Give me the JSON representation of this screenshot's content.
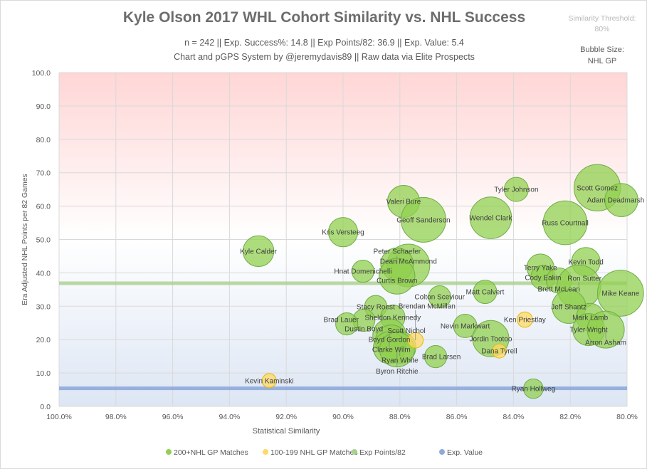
{
  "header": {
    "title": "Kyle Olson 2017 WHL Cohort Similarity vs. NHL Success",
    "subtitle1": "n = 242 || Exp. Success%: 14.8 || Exp Points/82: 36.9 || Exp. Value: 5.4",
    "subtitle2": "Chart and pGPS System by @jeremydavis89 || Raw data via Elite Prospects",
    "threshold_label": "Similarity Threshold:",
    "threshold_value": "80%",
    "bubble_label": "Bubble Size:",
    "bubble_value": "NHL GP"
  },
  "chart_data": {
    "type": "scatter",
    "subtype": "bubble",
    "xlabel": "Statistical Similarity",
    "ylabel": "Era Adjusted NHL Points per 82 Games",
    "xlim": [
      100,
      80
    ],
    "ylim": [
      0,
      100
    ],
    "x_reversed": true,
    "xticks": [
      "100.0%",
      "98.0%",
      "96.0%",
      "94.0%",
      "92.0%",
      "90.0%",
      "88.0%",
      "86.0%",
      "84.0%",
      "82.0%",
      "80.0%"
    ],
    "yticks": [
      "0.0",
      "10.0",
      "20.0",
      "30.0",
      "40.0",
      "50.0",
      "60.0",
      "70.0",
      "80.0",
      "90.0",
      "100.0"
    ],
    "grid": true,
    "legend_position": "bottom",
    "colors": {
      "green": "#92d050",
      "yellow": "#ffd966",
      "exp_points": "#a9d18e",
      "exp_value": "#8faadc",
      "bg_top": "#ffd6d6",
      "bg_bottom": "#dde6f4"
    },
    "legend": [
      "200+NHL GP Matches",
      "100-199 NHL GP Matches",
      "Exp Points/82",
      "Exp. Value"
    ],
    "reference_lines": {
      "exp_points_82": 36.9,
      "exp_value": 5.4
    },
    "series": [
      {
        "name": "200+NHL GP Matches",
        "color": "green",
        "points": [
          {
            "label": "Kyle Calder",
            "x": 92.98,
            "y": 46.5,
            "gp": 520
          },
          {
            "label": "Kris Versteeg",
            "x": 90.0,
            "y": 52.2,
            "gp": 470
          },
          {
            "label": "Hnat Domenichelli",
            "x": 89.3,
            "y": 40.5,
            "gp": 270
          },
          {
            "label": "Dean McAmmond",
            "x": 87.7,
            "y": 42.2,
            "gp": 1000
          },
          {
            "label": "Peter Schaefer",
            "x": 88.1,
            "y": 42.6,
            "gp": 580
          },
          {
            "label": "Curtis Brown",
            "x": 88.1,
            "y": 39.0,
            "gp": 700
          },
          {
            "label": "Valeri Bure",
            "x": 87.87,
            "y": 61.4,
            "gp": 560
          },
          {
            "label": "Geoff Sanderson",
            "x": 87.17,
            "y": 55.9,
            "gp": 1100
          },
          {
            "label": "Stacy Roest",
            "x": 88.85,
            "y": 29.9,
            "gp": 270
          },
          {
            "label": "Sheldon Kennedy",
            "x": 88.25,
            "y": 26.7,
            "gp": 330
          },
          {
            "label": "Dustin Boyd",
            "x": 89.27,
            "y": 25.8,
            "gp": 270
          },
          {
            "label": "Brad Lauer",
            "x": 89.87,
            "y": 24.7,
            "gp": 270
          },
          {
            "label": "Boyd Gordon",
            "x": 88.37,
            "y": 21.3,
            "gp": 600
          },
          {
            "label": "Clarke Wilm",
            "x": 88.3,
            "y": 19.6,
            "gp": 560
          },
          {
            "label": "Ryan White",
            "x": 88.0,
            "y": 17.7,
            "gp": 560
          },
          {
            "label": "Scott Nichol",
            "x": 88.37,
            "y": 17.6,
            "gp": 560
          },
          {
            "label": "Byron Ritchie",
            "x": 88.1,
            "y": 17.0,
            "gp": 660
          },
          {
            "label": "Brad Larsen",
            "x": 86.74,
            "y": 14.9,
            "gp": 270
          },
          {
            "label": "Colton Sceviour",
            "x": 86.6,
            "y": 32.8,
            "gp": 270
          },
          {
            "label": "Matt Calvert",
            "x": 85.0,
            "y": 34.3,
            "gp": 300
          },
          {
            "label": "Nevin Markwart",
            "x": 85.7,
            "y": 24.1,
            "gp": 300
          },
          {
            "label": "Jordin Tootoo",
            "x": 84.8,
            "y": 20.3,
            "gp": 720
          },
          {
            "label": "Ryan Hollweg",
            "x": 83.3,
            "y": 5.3,
            "gp": 210
          },
          {
            "label": "Tyler Johnson",
            "x": 83.9,
            "y": 65.0,
            "gp": 320
          },
          {
            "label": "Wendel Clark",
            "x": 84.8,
            "y": 56.5,
            "gp": 950
          },
          {
            "label": "Russ Courtnall",
            "x": 82.18,
            "y": 55.0,
            "gp": 1050
          },
          {
            "label": "Scott Gomez",
            "x": 81.05,
            "y": 65.5,
            "gp": 1180
          },
          {
            "label": "Adam Deadmarsh",
            "x": 80.2,
            "y": 61.8,
            "gp": 600
          },
          {
            "label": "Kevin Todd",
            "x": 81.45,
            "y": 43.3,
            "gp": 450
          },
          {
            "label": "Terry Yake",
            "x": 83.05,
            "y": 41.6,
            "gp": 400
          },
          {
            "label": "Cody Eakin",
            "x": 82.96,
            "y": 38.6,
            "gp": 330
          },
          {
            "label": "Brett McLean",
            "x": 82.4,
            "y": 37.7,
            "gp": 350
          },
          {
            "label": "Ron Sutter",
            "x": 81.7,
            "y": 35.8,
            "gp": 1050
          },
          {
            "label": "Mike Keane",
            "x": 80.23,
            "y": 33.9,
            "gp": 1160
          },
          {
            "label": "Jeff Shantz",
            "x": 82.05,
            "y": 29.9,
            "gp": 620
          },
          {
            "label": "Mark Lamb",
            "x": 81.3,
            "y": 26.7,
            "gp": 420
          },
          {
            "label": "Tyler Wright",
            "x": 81.35,
            "y": 23.0,
            "gp": 560
          },
          {
            "label": "Arron Asham",
            "x": 80.75,
            "y": 23.0,
            "gp": 750
          }
        ]
      },
      {
        "name": "100-199 NHL GP Matches",
        "color": "yellow",
        "points": [
          {
            "label": "Brendan McMillan",
            "x": 87.45,
            "y": 19.8,
            "gp": 130
          },
          {
            "label": "Dana Tyrell",
            "x": 84.5,
            "y": 16.6,
            "gp": 110
          },
          {
            "label": "Ken Priestlay",
            "x": 83.6,
            "y": 26.0,
            "gp": 130
          },
          {
            "label": "Kevin Kaminski",
            "x": 92.6,
            "y": 7.7,
            "gp": 110
          }
        ]
      }
    ]
  }
}
